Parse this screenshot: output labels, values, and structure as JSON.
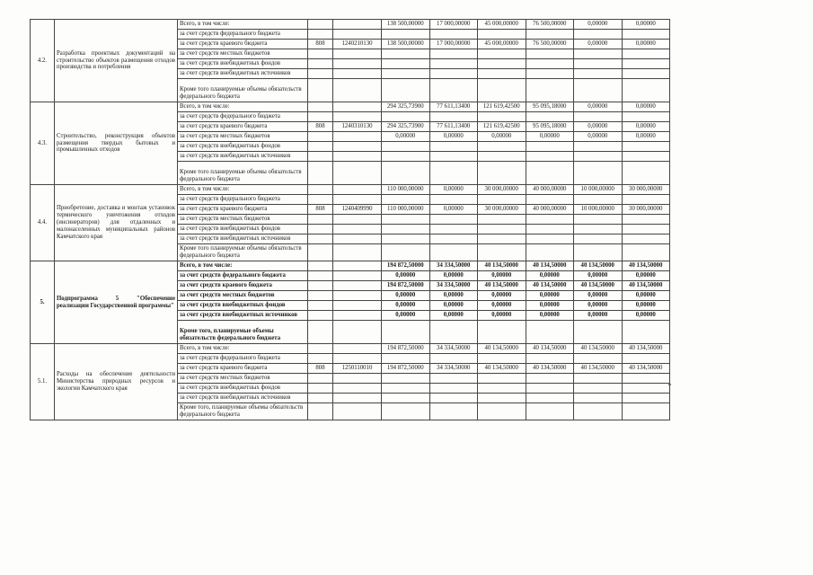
{
  "colors": {
    "ink": "#1c1c1c",
    "line": "#454545",
    "page_background": "#fdfdfc"
  },
  "table": {
    "sections": [
      {
        "num": "4.2.",
        "description": "Разработка проектных документаций на строительство объектов размещения отходов производства и потребления",
        "bold": false,
        "rows": [
          {
            "label": "Всего, в том числе:",
            "grbs": "",
            "code": "",
            "values": [
              "138 500,00000",
              "17 000,00000",
              "45 000,00000",
              "76 500,00000",
              "0,00000",
              "0,00000"
            ]
          },
          {
            "label": "за счет средств федерального бюджета",
            "grbs": "",
            "code": "",
            "values": [
              "",
              "",
              "",
              "",
              "",
              ""
            ]
          },
          {
            "label": "за счет средств краевого бюджета",
            "grbs": "808",
            "code": "1240210130",
            "values": [
              "138 500,00000",
              "17 000,00000",
              "45 000,00000",
              "76 500,00000",
              "0,00000",
              "0,00000"
            ]
          },
          {
            "label": "за счет средств местных бюджетов",
            "grbs": "",
            "code": "",
            "values": [
              "",
              "",
              "",
              "",
              "",
              ""
            ]
          },
          {
            "label": "за счет средств внебюджетных фондов",
            "grbs": "",
            "code": "",
            "values": [
              "",
              "",
              "",
              "",
              "",
              ""
            ]
          },
          {
            "label": "за счет средств внебюджетных источников",
            "grbs": "",
            "code": "",
            "values": [
              "",
              "",
              "",
              "",
              "",
              ""
            ]
          },
          {
            "label": "Кроме того планируемые объемы обязательств федерального бюджета",
            "grbs": "",
            "code": "",
            "values": [
              "",
              "",
              "",
              "",
              "",
              ""
            ],
            "krome": true,
            "tall": true
          }
        ]
      },
      {
        "num": "4.3.",
        "description": "Строительство, реконструкция объектов размещения твердых бытовых и промышленных отходов",
        "bold": false,
        "rows": [
          {
            "label": "Всего, в том числе:",
            "grbs": "",
            "code": "",
            "values": [
              "294 325,73900",
              "77 611,13400",
              "121 619,42500",
              "95 095,18000",
              "0,00000",
              "0,00000"
            ]
          },
          {
            "label": "за счет средств федерального бюджета",
            "grbs": "",
            "code": "",
            "values": [
              "",
              "",
              "",
              "",
              "",
              ""
            ]
          },
          {
            "label": "за счет средств краевого бюджета",
            "grbs": "808",
            "code": "1240310130",
            "values": [
              "294 325,73900",
              "77 611,13400",
              "121 619,42500",
              "95 095,18000",
              "0,00000",
              "0,00000"
            ]
          },
          {
            "label": "за счет средств местных бюджетов",
            "grbs": "",
            "code": "",
            "values": [
              "0,00000",
              "0,00000",
              "0,00000",
              "0,00000",
              "0,00000",
              "0,00000"
            ]
          },
          {
            "label": "за счет средств внебюджетных фондов",
            "grbs": "",
            "code": "",
            "values": [
              "",
              "",
              "",
              "",
              "",
              ""
            ]
          },
          {
            "label": "за счет средств  внебюджетных источников",
            "grbs": "",
            "code": "",
            "values": [
              "",
              "",
              "",
              "",
              "",
              ""
            ]
          },
          {
            "label": "Кроме того планируемые объемы обязательств федерального бюджета",
            "grbs": "",
            "code": "",
            "values": [
              "",
              "",
              "",
              "",
              "",
              ""
            ],
            "krome": true,
            "tall": true
          }
        ]
      },
      {
        "num": "4.4.",
        "description": "Приобретение, доставка и монтаж установок термического уничтожения отходов (инсинераторов) для отдаленных и малонаселенных муниципальных районов Камчатского края",
        "bold": false,
        "rows": [
          {
            "label": "Всего, в том числе:",
            "grbs": "",
            "code": "",
            "values": [
              "110 000,00000",
              "0,00000",
              "30 000,00000",
              "40 000,00000",
              "10 000,00000",
              "30 000,00000"
            ]
          },
          {
            "label": "за счет средств федерального бюджета",
            "grbs": "",
            "code": "",
            "values": [
              "",
              "",
              "",
              "",
              "",
              ""
            ]
          },
          {
            "label": "за счет средств краевого бюджета",
            "grbs": "808",
            "code": "1240409990",
            "values": [
              "110 000,00000",
              "0,00000",
              "30 000,00000",
              "40 000,00000",
              "10 000,00000",
              "30 000,00000"
            ]
          },
          {
            "label": "за счет средств местных бюджетов",
            "grbs": "",
            "code": "",
            "values": [
              "",
              "",
              "",
              "",
              "",
              ""
            ]
          },
          {
            "label": "за счет средств внебюджетных фондов",
            "grbs": "",
            "code": "",
            "values": [
              "",
              "",
              "",
              "",
              "",
              ""
            ]
          },
          {
            "label": "за счет средств  внебюджетных источников",
            "grbs": "",
            "code": "",
            "values": [
              "",
              "",
              "",
              "",
              "",
              ""
            ]
          },
          {
            "label": "Кроме того планируемые объемы обязательств федерального бюджета",
            "grbs": "",
            "code": "",
            "values": [
              "",
              "",
              "",
              "",
              "",
              ""
            ],
            "krome": true
          }
        ]
      },
      {
        "num": "5.",
        "description": "Подпрограмма 5 \"Обеспечение реализации Государственной программы\"",
        "bold": true,
        "rows": [
          {
            "label": "Всего, в том числе:",
            "grbs": "",
            "code": "",
            "values": [
              "194 872,50000",
              "34 334,50000",
              "40 134,50000",
              "40 134,50000",
              "40 134,50000",
              "40 134,50000"
            ]
          },
          {
            "label": "за счет средств федерального бюджета",
            "grbs": "",
            "code": "",
            "values": [
              "0,00000",
              "0,00000",
              "0,00000",
              "0,00000",
              "0,00000",
              "0,00000"
            ]
          },
          {
            "label": "за счет средств краевого бюджета",
            "grbs": "",
            "code": "",
            "values": [
              "194 872,50000",
              "34 334,50000",
              "40 134,50000",
              "40 134,50000",
              "40 134,50000",
              "40 134,50000"
            ]
          },
          {
            "label": "за счет средств местных бюджетов",
            "grbs": "",
            "code": "",
            "values": [
              "0,00000",
              "0,00000",
              "0,00000",
              "0,00000",
              "0,00000",
              "0,00000"
            ]
          },
          {
            "label": "за счет средств внебюджетных фондов",
            "grbs": "",
            "code": "",
            "values": [
              "0,00000",
              "0,00000",
              "0,00000",
              "0,00000",
              "0,00000",
              "0,00000"
            ]
          },
          {
            "label": "за счет средств внебюджетных источников",
            "grbs": "",
            "code": "",
            "values": [
              "0,00000",
              "0,00000",
              "0,00000",
              "0,00000",
              "0,00000",
              "0,00000"
            ]
          },
          {
            "label": "Кроме того, планируемые объемы обязательств федерального бюджета",
            "grbs": "",
            "code": "",
            "values": [
              "",
              "",
              "",
              "",
              "",
              ""
            ],
            "krome": true,
            "tall": true
          }
        ]
      },
      {
        "num": "5.1.",
        "description": "Расходы на обеспечение деятельности Министерства природных ресурсов и экологии Камчатского края",
        "bold": false,
        "rows": [
          {
            "label": "Всего, в том числе:",
            "grbs": "",
            "code": "",
            "values": [
              "194 872,50000",
              "34 334,50000",
              "40 134,50000",
              "40 134,50000",
              "40 134,50000",
              "40 134,50000"
            ]
          },
          {
            "label": "за счет средств федерального бюджета",
            "grbs": "",
            "code": "",
            "values": [
              "",
              "",
              "",
              "",
              "",
              ""
            ]
          },
          {
            "label": "за счет средств краевого бюджета",
            "grbs": "808",
            "code": "1250110010",
            "values": [
              "194 872,50000",
              "34 334,50000",
              "40 134,50000",
              "40 134,50000",
              "40 134,50000",
              "40 134,50000"
            ]
          },
          {
            "label": "за счет средств местных бюджетов",
            "grbs": "",
            "code": "",
            "values": [
              "",
              "",
              "",
              "",
              "",
              ""
            ]
          },
          {
            "label": "за счет средств внебюджетных фондов",
            "grbs": "",
            "code": "",
            "values": [
              "",
              "",
              "",
              "",
              "",
              ""
            ]
          },
          {
            "label": "за счет средств внебюджетных источников",
            "grbs": "",
            "code": "",
            "values": [
              "",
              "",
              "",
              "",
              "",
              ""
            ]
          },
          {
            "label": "Кроме того, планируемые объемы обязательств федерального бюджета",
            "grbs": "",
            "code": "",
            "values": [
              "",
              "",
              "",
              "",
              "",
              ""
            ],
            "krome": true
          }
        ]
      }
    ]
  }
}
